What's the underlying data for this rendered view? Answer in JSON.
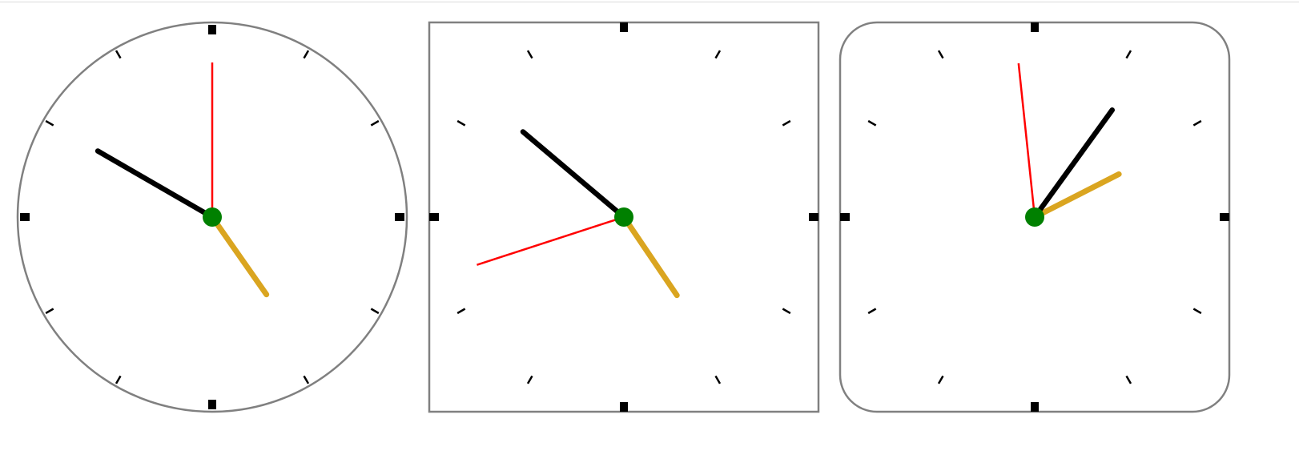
{
  "colors": {
    "frame": "#808080",
    "ticks": "#000000",
    "hour_hand": "#daa520",
    "minute_hand": "#000000",
    "second_hand": "#ff0000",
    "center_dot": "#008000",
    "background": "#ffffff"
  },
  "clocks": [
    {
      "face_shape": "circle",
      "time": {
        "hour": 4,
        "minute": 50,
        "second": 0
      }
    },
    {
      "face_shape": "square",
      "time": {
        "hour": 4,
        "minute": 51,
        "second": 42
      }
    },
    {
      "face_shape": "rounded-square",
      "time": {
        "hour": 2,
        "minute": 5,
        "second": 59
      }
    }
  ]
}
